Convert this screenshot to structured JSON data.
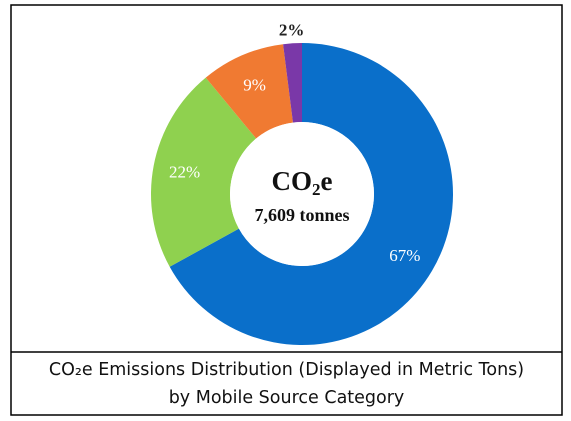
{
  "chart_data": {
    "type": "pie",
    "donut": true,
    "slices": [
      {
        "label": "67%",
        "value": 67,
        "color": "#0a6fca"
      },
      {
        "label": "22%",
        "value": 22,
        "color": "#8fd14f"
      },
      {
        "label": "9%",
        "value": 9,
        "color": "#f07a32"
      },
      {
        "label": "2%",
        "value": 2,
        "color": "#7a38a8"
      }
    ],
    "center": {
      "title_main": "CO",
      "title_sub": "2",
      "title_end": "e",
      "subtitle": "7,609 tonnes"
    }
  },
  "caption": {
    "line1": "CO₂e Emissions Distribution (Displayed in Metric Tons)",
    "line2": "by Mobile Source Category"
  }
}
